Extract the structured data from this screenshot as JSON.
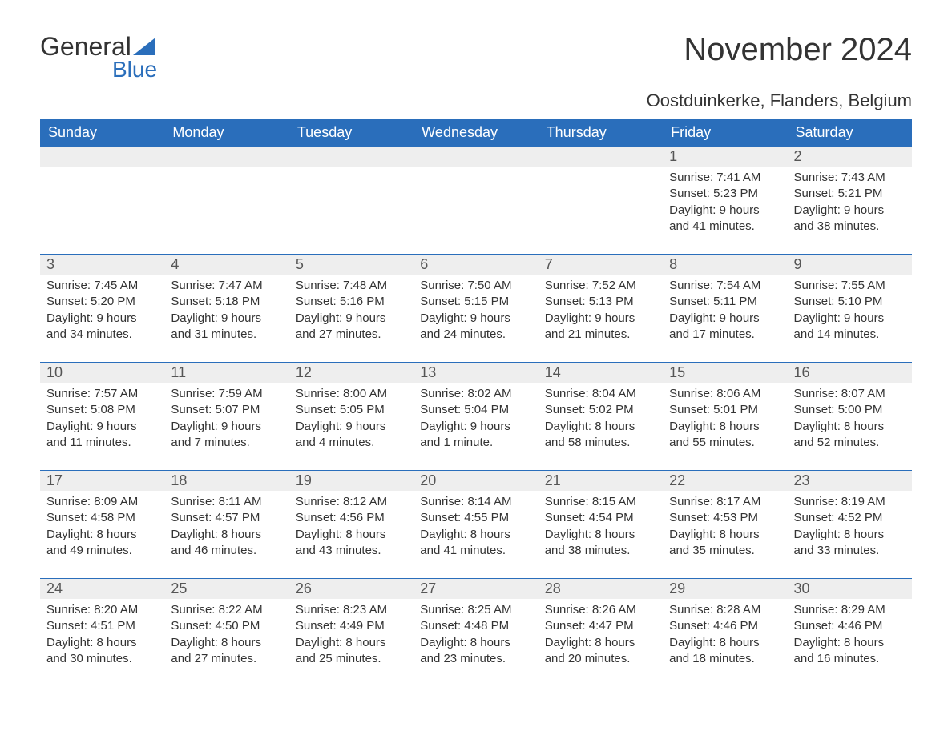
{
  "logo": {
    "text_top": "General",
    "text_bottom": "Blue",
    "icon_color": "#2a6ebb",
    "text_top_color": "#333333",
    "text_bottom_color": "#2a6ebb"
  },
  "header": {
    "month_title": "November 2024",
    "location": "Oostduinkerke, Flanders, Belgium"
  },
  "colors": {
    "header_bg": "#2a6ebb",
    "header_text": "#ffffff",
    "day_number_bg": "#eeeeee",
    "body_text": "#333333",
    "border": "#2a6ebb"
  },
  "day_names": [
    "Sunday",
    "Monday",
    "Tuesday",
    "Wednesday",
    "Thursday",
    "Friday",
    "Saturday"
  ],
  "weeks": [
    [
      null,
      null,
      null,
      null,
      null,
      {
        "num": "1",
        "sunrise": "Sunrise: 7:41 AM",
        "sunset": "Sunset: 5:23 PM",
        "daylight1": "Daylight: 9 hours",
        "daylight2": "and 41 minutes."
      },
      {
        "num": "2",
        "sunrise": "Sunrise: 7:43 AM",
        "sunset": "Sunset: 5:21 PM",
        "daylight1": "Daylight: 9 hours",
        "daylight2": "and 38 minutes."
      }
    ],
    [
      {
        "num": "3",
        "sunrise": "Sunrise: 7:45 AM",
        "sunset": "Sunset: 5:20 PM",
        "daylight1": "Daylight: 9 hours",
        "daylight2": "and 34 minutes."
      },
      {
        "num": "4",
        "sunrise": "Sunrise: 7:47 AM",
        "sunset": "Sunset: 5:18 PM",
        "daylight1": "Daylight: 9 hours",
        "daylight2": "and 31 minutes."
      },
      {
        "num": "5",
        "sunrise": "Sunrise: 7:48 AM",
        "sunset": "Sunset: 5:16 PM",
        "daylight1": "Daylight: 9 hours",
        "daylight2": "and 27 minutes."
      },
      {
        "num": "6",
        "sunrise": "Sunrise: 7:50 AM",
        "sunset": "Sunset: 5:15 PM",
        "daylight1": "Daylight: 9 hours",
        "daylight2": "and 24 minutes."
      },
      {
        "num": "7",
        "sunrise": "Sunrise: 7:52 AM",
        "sunset": "Sunset: 5:13 PM",
        "daylight1": "Daylight: 9 hours",
        "daylight2": "and 21 minutes."
      },
      {
        "num": "8",
        "sunrise": "Sunrise: 7:54 AM",
        "sunset": "Sunset: 5:11 PM",
        "daylight1": "Daylight: 9 hours",
        "daylight2": "and 17 minutes."
      },
      {
        "num": "9",
        "sunrise": "Sunrise: 7:55 AM",
        "sunset": "Sunset: 5:10 PM",
        "daylight1": "Daylight: 9 hours",
        "daylight2": "and 14 minutes."
      }
    ],
    [
      {
        "num": "10",
        "sunrise": "Sunrise: 7:57 AM",
        "sunset": "Sunset: 5:08 PM",
        "daylight1": "Daylight: 9 hours",
        "daylight2": "and 11 minutes."
      },
      {
        "num": "11",
        "sunrise": "Sunrise: 7:59 AM",
        "sunset": "Sunset: 5:07 PM",
        "daylight1": "Daylight: 9 hours",
        "daylight2": "and 7 minutes."
      },
      {
        "num": "12",
        "sunrise": "Sunrise: 8:00 AM",
        "sunset": "Sunset: 5:05 PM",
        "daylight1": "Daylight: 9 hours",
        "daylight2": "and 4 minutes."
      },
      {
        "num": "13",
        "sunrise": "Sunrise: 8:02 AM",
        "sunset": "Sunset: 5:04 PM",
        "daylight1": "Daylight: 9 hours",
        "daylight2": "and 1 minute."
      },
      {
        "num": "14",
        "sunrise": "Sunrise: 8:04 AM",
        "sunset": "Sunset: 5:02 PM",
        "daylight1": "Daylight: 8 hours",
        "daylight2": "and 58 minutes."
      },
      {
        "num": "15",
        "sunrise": "Sunrise: 8:06 AM",
        "sunset": "Sunset: 5:01 PM",
        "daylight1": "Daylight: 8 hours",
        "daylight2": "and 55 minutes."
      },
      {
        "num": "16",
        "sunrise": "Sunrise: 8:07 AM",
        "sunset": "Sunset: 5:00 PM",
        "daylight1": "Daylight: 8 hours",
        "daylight2": "and 52 minutes."
      }
    ],
    [
      {
        "num": "17",
        "sunrise": "Sunrise: 8:09 AM",
        "sunset": "Sunset: 4:58 PM",
        "daylight1": "Daylight: 8 hours",
        "daylight2": "and 49 minutes."
      },
      {
        "num": "18",
        "sunrise": "Sunrise: 8:11 AM",
        "sunset": "Sunset: 4:57 PM",
        "daylight1": "Daylight: 8 hours",
        "daylight2": "and 46 minutes."
      },
      {
        "num": "19",
        "sunrise": "Sunrise: 8:12 AM",
        "sunset": "Sunset: 4:56 PM",
        "daylight1": "Daylight: 8 hours",
        "daylight2": "and 43 minutes."
      },
      {
        "num": "20",
        "sunrise": "Sunrise: 8:14 AM",
        "sunset": "Sunset: 4:55 PM",
        "daylight1": "Daylight: 8 hours",
        "daylight2": "and 41 minutes."
      },
      {
        "num": "21",
        "sunrise": "Sunrise: 8:15 AM",
        "sunset": "Sunset: 4:54 PM",
        "daylight1": "Daylight: 8 hours",
        "daylight2": "and 38 minutes."
      },
      {
        "num": "22",
        "sunrise": "Sunrise: 8:17 AM",
        "sunset": "Sunset: 4:53 PM",
        "daylight1": "Daylight: 8 hours",
        "daylight2": "and 35 minutes."
      },
      {
        "num": "23",
        "sunrise": "Sunrise: 8:19 AM",
        "sunset": "Sunset: 4:52 PM",
        "daylight1": "Daylight: 8 hours",
        "daylight2": "and 33 minutes."
      }
    ],
    [
      {
        "num": "24",
        "sunrise": "Sunrise: 8:20 AM",
        "sunset": "Sunset: 4:51 PM",
        "daylight1": "Daylight: 8 hours",
        "daylight2": "and 30 minutes."
      },
      {
        "num": "25",
        "sunrise": "Sunrise: 8:22 AM",
        "sunset": "Sunset: 4:50 PM",
        "daylight1": "Daylight: 8 hours",
        "daylight2": "and 27 minutes."
      },
      {
        "num": "26",
        "sunrise": "Sunrise: 8:23 AM",
        "sunset": "Sunset: 4:49 PM",
        "daylight1": "Daylight: 8 hours",
        "daylight2": "and 25 minutes."
      },
      {
        "num": "27",
        "sunrise": "Sunrise: 8:25 AM",
        "sunset": "Sunset: 4:48 PM",
        "daylight1": "Daylight: 8 hours",
        "daylight2": "and 23 minutes."
      },
      {
        "num": "28",
        "sunrise": "Sunrise: 8:26 AM",
        "sunset": "Sunset: 4:47 PM",
        "daylight1": "Daylight: 8 hours",
        "daylight2": "and 20 minutes."
      },
      {
        "num": "29",
        "sunrise": "Sunrise: 8:28 AM",
        "sunset": "Sunset: 4:46 PM",
        "daylight1": "Daylight: 8 hours",
        "daylight2": "and 18 minutes."
      },
      {
        "num": "30",
        "sunrise": "Sunrise: 8:29 AM",
        "sunset": "Sunset: 4:46 PM",
        "daylight1": "Daylight: 8 hours",
        "daylight2": "and 16 minutes."
      }
    ]
  ]
}
